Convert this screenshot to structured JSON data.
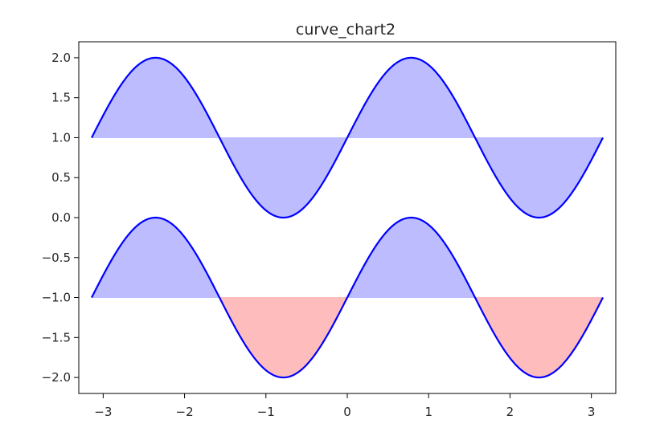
{
  "chart_data": {
    "type": "area",
    "title": "curve_chart2",
    "xlabel": "",
    "ylabel": "",
    "xlim": [
      -3.3,
      3.3
    ],
    "ylim": [
      -2.2,
      2.2
    ],
    "grid": false,
    "x_ticks": [
      -3,
      -2,
      -1,
      0,
      1,
      2,
      3
    ],
    "x_tick_labels": [
      "−3",
      "−2",
      "−1",
      "0",
      "1",
      "2",
      "3"
    ],
    "y_ticks": [
      2.0,
      1.5,
      1.0,
      0.5,
      0.0,
      -0.5,
      -1.0,
      -1.5,
      -2.0
    ],
    "y_tick_labels": [
      "2.0",
      "1.5",
      "1.0",
      "0.5",
      "0.0",
      "−0.5",
      "−1.0",
      "−1.5",
      "−2.0"
    ],
    "series": [
      {
        "function": "y = 1 + sin(2x)",
        "x_range": [
          -3.14159,
          3.14159
        ],
        "fill_baseline": 1.0,
        "fill_above_color": "#bcbcff",
        "fill_below_color": "#bcbcff",
        "line_color": "#0000ff",
        "sample_points": [
          [
            -3.14,
            1.0
          ],
          [
            -2.36,
            2.0
          ],
          [
            -1.57,
            1.0
          ],
          [
            -0.79,
            0.0
          ],
          [
            0.0,
            1.0
          ],
          [
            0.79,
            2.0
          ],
          [
            1.57,
            1.0
          ],
          [
            2.36,
            0.0
          ],
          [
            3.14,
            1.0
          ]
        ]
      },
      {
        "function": "y = -1 + sin(2x)",
        "x_range": [
          -3.14159,
          3.14159
        ],
        "fill_baseline": -1.0,
        "fill_above_color": "#bcbcff",
        "fill_below_color": "#ffbcbc",
        "line_color": "#0000ff",
        "sample_points": [
          [
            -3.14,
            -1.0
          ],
          [
            -2.36,
            0.0
          ],
          [
            -1.57,
            -1.0
          ],
          [
            -0.79,
            -2.0
          ],
          [
            0.0,
            -1.0
          ],
          [
            0.79,
            0.0
          ],
          [
            1.57,
            -1.0
          ],
          [
            2.36,
            -2.0
          ],
          [
            3.14,
            -1.0
          ]
        ]
      }
    ]
  }
}
